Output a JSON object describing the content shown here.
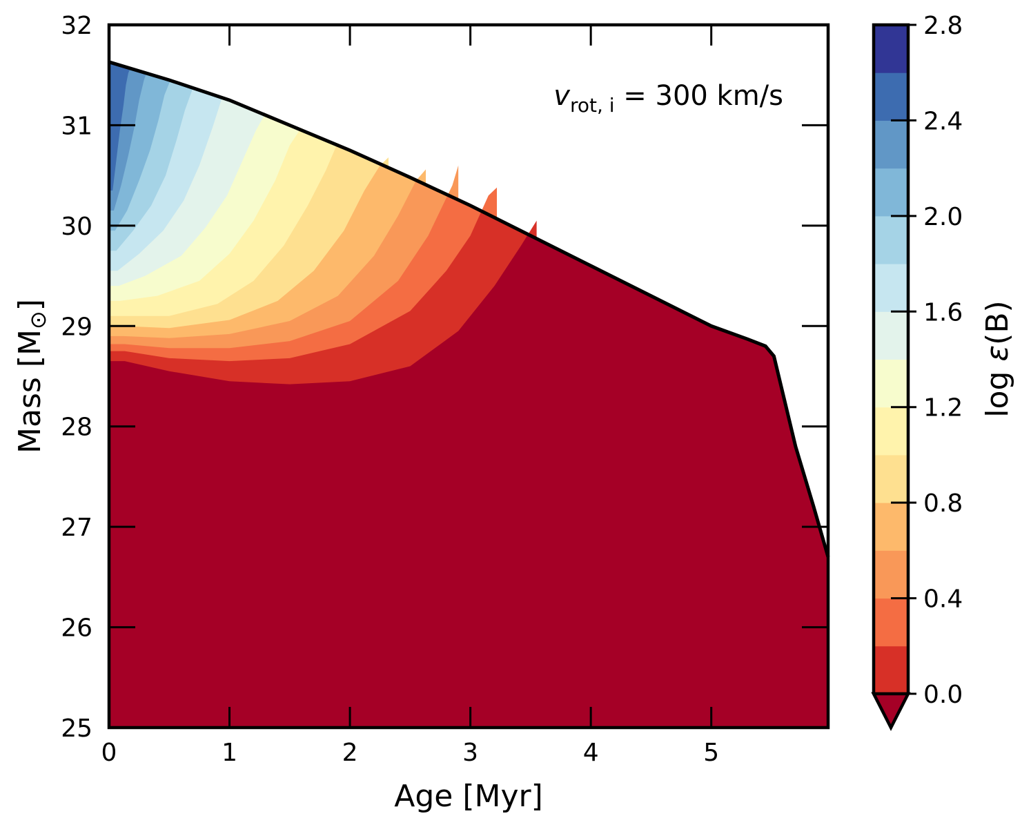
{
  "chart_data": {
    "type": "contourf",
    "xlabel": "Age [Myr]",
    "ylabel_main": "Mass [M",
    "ylabel_sym": "⊙",
    "ylabel_end": "]",
    "xlim": [
      0,
      5.97
    ],
    "ylim": [
      25,
      32
    ],
    "xticks": [
      0,
      1,
      2,
      3,
      4,
      5
    ],
    "yticks": [
      25,
      26,
      27,
      28,
      29,
      30,
      31,
      32
    ],
    "annotation": {
      "v": "v",
      "sub": "rot, i",
      "rest": " = 300 km/s"
    },
    "colorbar": {
      "label_prefix": "log ",
      "label_eps": "ε",
      "label_suffix": "(B)",
      "range": [
        0.0,
        2.8
      ],
      "tick_labels": [
        "0.0",
        "0.4",
        "0.8",
        "1.2",
        "1.6",
        "2.0",
        "2.4",
        "2.8"
      ],
      "tick_values": [
        0.0,
        0.4,
        0.8,
        1.2,
        1.6,
        2.0,
        2.4,
        2.8
      ],
      "level_step": 0.2,
      "extend": "min",
      "colors": [
        "#d73027",
        "#f46d43",
        "#f99858",
        "#fdb96b",
        "#fee090",
        "#fff3ac",
        "#f7fccd",
        "#e3f3eb",
        "#c6e6f0",
        "#a5d3e6",
        "#80b7d8",
        "#6197c6",
        "#3d6cb0",
        "#313695"
      ],
      "under_color": "#a50026"
    },
    "surface_curve": {
      "age": [
        0,
        0.5,
        1.0,
        1.5,
        2.0,
        2.5,
        3.0,
        3.5,
        4.0,
        4.5,
        5.0,
        5.3,
        5.45,
        5.52,
        5.56,
        5.7,
        5.85,
        5.97
      ],
      "mass": [
        31.63,
        31.45,
        31.25,
        31.0,
        30.75,
        30.48,
        30.2,
        29.9,
        29.6,
        29.3,
        29.0,
        28.87,
        28.8,
        28.7,
        28.5,
        27.8,
        27.2,
        26.7
      ]
    },
    "contour_boundaries": [
      {
        "level": 0.2,
        "age": [
          0.13,
          0.5,
          1.0,
          1.5,
          2.0,
          2.5,
          2.9,
          3.2,
          3.42,
          3.55
        ],
        "mass": [
          28.65,
          28.55,
          28.45,
          28.42,
          28.45,
          28.6,
          28.95,
          29.4,
          29.8,
          30.05
        ]
      },
      {
        "level": 0.4,
        "age": [
          0.13,
          0.5,
          1.0,
          1.5,
          2.0,
          2.5,
          2.8,
          3.0,
          3.15,
          3.22
        ],
        "mass": [
          28.75,
          28.68,
          28.65,
          28.68,
          28.82,
          29.15,
          29.55,
          29.9,
          30.3,
          30.38
        ]
      },
      {
        "level": 0.6,
        "age": [
          0.13,
          0.5,
          1.0,
          1.5,
          2.0,
          2.4,
          2.65,
          2.85,
          2.9
        ],
        "mass": [
          28.82,
          28.78,
          28.78,
          28.85,
          29.05,
          29.45,
          29.9,
          30.4,
          30.6
        ]
      },
      {
        "level": 0.8,
        "age": [
          0.12,
          0.5,
          1.0,
          1.5,
          1.9,
          2.2,
          2.4,
          2.55,
          2.63
        ],
        "mass": [
          28.9,
          28.88,
          28.92,
          29.05,
          29.3,
          29.7,
          30.1,
          30.45,
          30.56
        ]
      },
      {
        "level": 1.0,
        "age": [
          0.11,
          0.5,
          1.0,
          1.4,
          1.7,
          1.95,
          2.12,
          2.25,
          2.32
        ],
        "mass": [
          29.0,
          28.98,
          29.06,
          29.25,
          29.55,
          29.95,
          30.35,
          30.6,
          30.68
        ]
      },
      {
        "level": 1.2,
        "age": [
          0.1,
          0.5,
          0.9,
          1.2,
          1.45,
          1.65,
          1.8,
          1.9
        ],
        "mass": [
          29.1,
          29.1,
          29.22,
          29.45,
          29.8,
          30.2,
          30.55,
          30.83
        ]
      },
      {
        "level": 1.4,
        "age": [
          0.09,
          0.4,
          0.75,
          1.0,
          1.2,
          1.38,
          1.5,
          1.6
        ],
        "mass": [
          29.25,
          29.3,
          29.45,
          29.72,
          30.05,
          30.45,
          30.8,
          30.98
        ]
      },
      {
        "level": 1.6,
        "age": [
          0.08,
          0.3,
          0.6,
          0.8,
          0.98,
          1.12,
          1.22,
          1.3
        ],
        "mass": [
          29.4,
          29.5,
          29.7,
          29.98,
          30.3,
          30.68,
          30.95,
          31.12
        ]
      },
      {
        "level": 1.8,
        "age": [
          0.07,
          0.25,
          0.45,
          0.62,
          0.75,
          0.86,
          0.94
        ],
        "mass": [
          29.55,
          29.72,
          29.95,
          30.25,
          30.6,
          30.98,
          31.28
        ]
      },
      {
        "level": 2.0,
        "age": [
          0.06,
          0.2,
          0.35,
          0.47,
          0.56,
          0.63,
          0.69
        ],
        "mass": [
          29.75,
          29.95,
          30.2,
          30.5,
          30.85,
          31.15,
          31.35
        ]
      },
      {
        "level": 2.2,
        "age": [
          0.05,
          0.15,
          0.25,
          0.34,
          0.41,
          0.46,
          0.51
        ],
        "mass": [
          29.95,
          30.15,
          30.45,
          30.75,
          31.05,
          31.3,
          31.45
        ]
      },
      {
        "level": 2.4,
        "age": [
          0.04,
          0.1,
          0.16,
          0.21,
          0.25,
          0.29,
          0.31
        ],
        "mass": [
          30.15,
          30.4,
          30.7,
          30.98,
          31.25,
          31.45,
          31.52
        ]
      },
      {
        "level": 2.6,
        "age": [
          0.03,
          0.06,
          0.09,
          0.12,
          0.14,
          0.16,
          0.18
        ],
        "mass": [
          30.35,
          30.65,
          30.95,
          31.2,
          31.4,
          31.52,
          31.58
        ]
      }
    ]
  }
}
